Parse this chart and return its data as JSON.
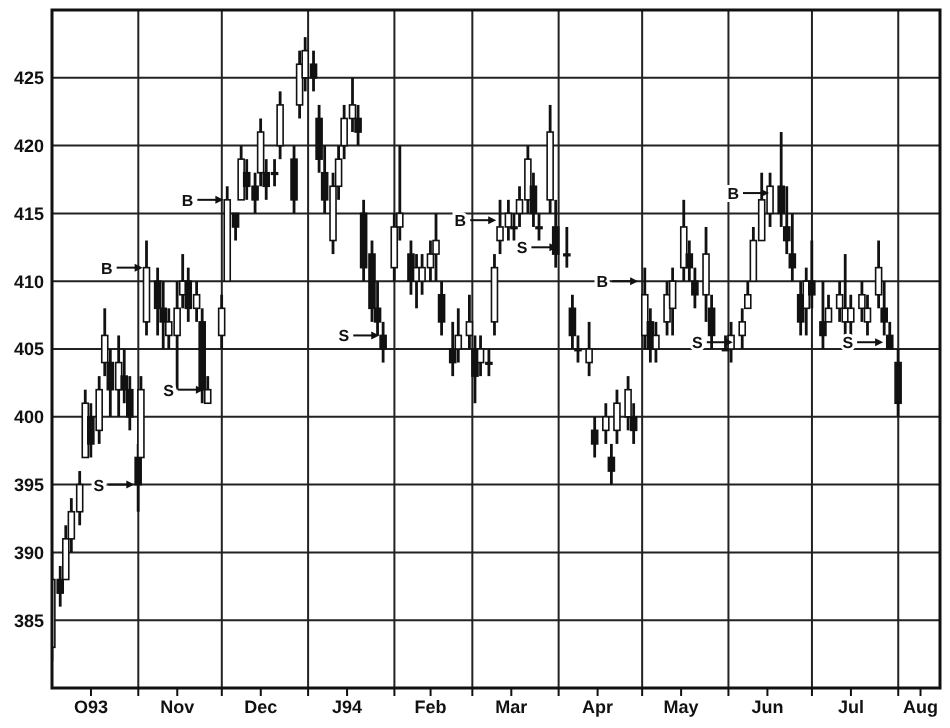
{
  "chart_data": {
    "type": "candlestick",
    "color": "#111111",
    "x": [
      "1993-10-01",
      "1993-10-04",
      "1993-10-06",
      "1993-10-08",
      "1993-10-11",
      "1993-10-13",
      "1993-10-15",
      "1993-10-18",
      "1993-10-20",
      "1993-10-22",
      "1993-10-25",
      "1993-10-27",
      "1993-10-29",
      "1993-11-01",
      "1993-11-02",
      "1993-11-04",
      "1993-11-08",
      "1993-11-10",
      "1993-11-12",
      "1993-11-15",
      "1993-11-17",
      "1993-11-19",
      "1993-11-22",
      "1993-11-24",
      "1993-11-26",
      "1993-12-01",
      "1993-12-03",
      "1993-12-06",
      "1993-12-08",
      "1993-12-10",
      "1993-12-13",
      "1993-12-15",
      "1993-12-17",
      "1993-12-20",
      "1993-12-22",
      "1993-12-27",
      "1993-12-29",
      "1993-12-31",
      "1994-01-03",
      "1994-01-05",
      "1994-01-07",
      "1994-01-10",
      "1994-01-12",
      "1994-01-14",
      "1994-01-17",
      "1994-01-19",
      "1994-01-21",
      "1994-01-24",
      "1994-01-26",
      "1994-01-28",
      "1994-02-01",
      "1994-02-03",
      "1994-02-07",
      "1994-02-09",
      "1994-02-11",
      "1994-02-14",
      "1994-02-16",
      "1994-02-18",
      "1994-02-22",
      "1994-02-24",
      "1994-02-28",
      "1994-03-02",
      "1994-03-04",
      "1994-03-07",
      "1994-03-09",
      "1994-03-11",
      "1994-03-14",
      "1994-03-16",
      "1994-03-18",
      "1994-03-21",
      "1994-03-23",
      "1994-03-25",
      "1994-03-29",
      "1994-03-31",
      "1994-04-04",
      "1994-04-06",
      "1994-04-08",
      "1994-04-12",
      "1994-04-14",
      "1994-04-18",
      "1994-04-20",
      "1994-04-22",
      "1994-04-26",
      "1994-04-28",
      "1994-05-02",
      "1994-05-04",
      "1994-05-06",
      "1994-05-10",
      "1994-05-12",
      "1994-05-16",
      "1994-05-18",
      "1994-05-20",
      "1994-05-24",
      "1994-05-26",
      "1994-05-31",
      "1994-06-02",
      "1994-06-06",
      "1994-06-08",
      "1994-06-10",
      "1994-06-13",
      "1994-06-16",
      "1994-06-20",
      "1994-06-22",
      "1994-06-24",
      "1994-06-27",
      "1994-06-29",
      "1994-07-01",
      "1994-07-05",
      "1994-07-07",
      "1994-07-11",
      "1994-07-13",
      "1994-07-15",
      "1994-07-19",
      "1994-07-21",
      "1994-07-25",
      "1994-07-27",
      "1994-07-29",
      "1994-08-01"
    ],
    "ohlc": [
      [
        383,
        390,
        382,
        388
      ],
      [
        388,
        389,
        386,
        387
      ],
      [
        388,
        392,
        388,
        391
      ],
      [
        391,
        394,
        390,
        393
      ],
      [
        393,
        396,
        392,
        395
      ],
      [
        397,
        402,
        397,
        401
      ],
      [
        400,
        401,
        397,
        398
      ],
      [
        399,
        403,
        398,
        402
      ],
      [
        404,
        408,
        403,
        406
      ],
      [
        404,
        405,
        400,
        402
      ],
      [
        402,
        406,
        400,
        404
      ],
      [
        403,
        405,
        401,
        402
      ],
      [
        402,
        403,
        399,
        400
      ],
      [
        397,
        398,
        393,
        395
      ],
      [
        397,
        403,
        397,
        402
      ],
      [
        407,
        413,
        406,
        411
      ],
      [
        410,
        411,
        406,
        408
      ],
      [
        408,
        410,
        405,
        407
      ],
      [
        406,
        408,
        405,
        407
      ],
      [
        406,
        410,
        402,
        408
      ],
      [
        409,
        412,
        408,
        410
      ],
      [
        410,
        411,
        407,
        408
      ],
      [
        408,
        410,
        407,
        409
      ],
      [
        407,
        408,
        401,
        402
      ],
      [
        401,
        403,
        401,
        402
      ],
      [
        406,
        409,
        405,
        408
      ],
      [
        410,
        417,
        410,
        416
      ],
      [
        415,
        415,
        413,
        414
      ],
      [
        416,
        420,
        416,
        419
      ],
      [
        418,
        419,
        416,
        417
      ],
      [
        417,
        418,
        415,
        416
      ],
      [
        418,
        422,
        417,
        421
      ],
      [
        418,
        419,
        416,
        417
      ],
      [
        418,
        419,
        417,
        418
      ],
      [
        420,
        424,
        419,
        423
      ],
      [
        419,
        420,
        415,
        416
      ],
      [
        423,
        427,
        422,
        426
      ],
      [
        425,
        428,
        424,
        427
      ],
      [
        426,
        427,
        424,
        425
      ],
      [
        422,
        423,
        418,
        419
      ],
      [
        418,
        420,
        415,
        416
      ],
      [
        413,
        418,
        412,
        417
      ],
      [
        417,
        420,
        416,
        419
      ],
      [
        420,
        423,
        419,
        422
      ],
      [
        422,
        425,
        421,
        423
      ],
      [
        422,
        423,
        420,
        421
      ],
      [
        415,
        416,
        410,
        411
      ],
      [
        412,
        413,
        407,
        408
      ],
      [
        408,
        410,
        406,
        407
      ],
      [
        406,
        407,
        404,
        405
      ],
      [
        411,
        415,
        410,
        414
      ],
      [
        414,
        420,
        413,
        415
      ],
      [
        412,
        413,
        409,
        410
      ],
      [
        410,
        412,
        408,
        411
      ],
      [
        410,
        412,
        409,
        411
      ],
      [
        411,
        413,
        410,
        412
      ],
      [
        412,
        415,
        410,
        413
      ],
      [
        409,
        410,
        406,
        407
      ],
      [
        405,
        407,
        403,
        404
      ],
      [
        405,
        408,
        404,
        406
      ],
      [
        406,
        409,
        405,
        407
      ],
      [
        405,
        406,
        401,
        403
      ],
      [
        404,
        406,
        403,
        405
      ],
      [
        404,
        405,
        403,
        404
      ],
      [
        407,
        412,
        406,
        411
      ],
      [
        413,
        416,
        412,
        414
      ],
      [
        414,
        416,
        413,
        415
      ],
      [
        414,
        415,
        413,
        414
      ],
      [
        415,
        417,
        414,
        416
      ],
      [
        416,
        420,
        415,
        419
      ],
      [
        417,
        418,
        414,
        415
      ],
      [
        414,
        415,
        413,
        414
      ],
      [
        416,
        423,
        415,
        421
      ],
      [
        414,
        416,
        411,
        412
      ],
      [
        412,
        414,
        411,
        412
      ],
      [
        408,
        409,
        405,
        406
      ],
      [
        405,
        406,
        404,
        405
      ],
      [
        404,
        407,
        403,
        405
      ],
      [
        399,
        400,
        397,
        398
      ],
      [
        399,
        401,
        398,
        400
      ],
      [
        397,
        398,
        395,
        396
      ],
      [
        399,
        402,
        398,
        401
      ],
      [
        400,
        403,
        399,
        402
      ],
      [
        400,
        401,
        398,
        399
      ],
      [
        406,
        411,
        405,
        409
      ],
      [
        407,
        408,
        404,
        405
      ],
      [
        405,
        407,
        404,
        406
      ],
      [
        407,
        410,
        406,
        409
      ],
      [
        408,
        411,
        406,
        410
      ],
      [
        411,
        416,
        410,
        414
      ],
      [
        412,
        413,
        410,
        411
      ],
      [
        410,
        411,
        408,
        409
      ],
      [
        409,
        414,
        407,
        412
      ],
      [
        408,
        409,
        405,
        406
      ],
      [
        405,
        406,
        405,
        405
      ],
      [
        405,
        407,
        404,
        406
      ],
      [
        406,
        408,
        405,
        407
      ],
      [
        408,
        410,
        408,
        409
      ],
      [
        410,
        414,
        410,
        413
      ],
      [
        413,
        418,
        413,
        416
      ],
      [
        415,
        418,
        414,
        417
      ],
      [
        417,
        421,
        414,
        415
      ],
      [
        414,
        417,
        412,
        413
      ],
      [
        412,
        415,
        410,
        411
      ],
      [
        409,
        410,
        406,
        407
      ],
      [
        408,
        411,
        406,
        410
      ],
      [
        410,
        413,
        408,
        409
      ],
      [
        407,
        410,
        405,
        406
      ],
      [
        407,
        409,
        407,
        408
      ],
      [
        408,
        410,
        407,
        409
      ],
      [
        407,
        412,
        405,
        408
      ],
      [
        407,
        409,
        406,
        408
      ],
      [
        408,
        410,
        407,
        409
      ],
      [
        407,
        409,
        406,
        408
      ],
      [
        409,
        413,
        408,
        411
      ],
      [
        408,
        410,
        406,
        407
      ],
      [
        406,
        407,
        405,
        405
      ],
      [
        404,
        405,
        400,
        401
      ]
    ],
    "xlim": [
      "1993-10-01",
      "1994-08-16"
    ],
    "xticks": [
      {
        "value": "1993-10-15",
        "label": "O93"
      },
      {
        "value": "1993-11-01",
        "label": null
      },
      {
        "value": "1993-11-15",
        "label": "Nov"
      },
      {
        "value": "1993-12-01",
        "label": null
      },
      {
        "value": "1993-12-15",
        "label": "Dec"
      },
      {
        "value": "1994-01-01",
        "label": null
      },
      {
        "value": "1994-01-15",
        "label": "J94"
      },
      {
        "value": "1994-02-01",
        "label": null
      },
      {
        "value": "1994-02-14",
        "label": "Feb"
      },
      {
        "value": "1994-03-01",
        "label": null
      },
      {
        "value": "1994-03-15",
        "label": "Mar"
      },
      {
        "value": "1994-04-01",
        "label": null
      },
      {
        "value": "1994-04-15",
        "label": "Apr"
      },
      {
        "value": "1994-05-01",
        "label": null
      },
      {
        "value": "1994-05-15",
        "label": "May"
      },
      {
        "value": "1994-06-01",
        "label": null
      },
      {
        "value": "1994-06-15",
        "label": "Jun"
      },
      {
        "value": "1994-07-01",
        "label": null
      },
      {
        "value": "1994-07-15",
        "label": "Jul"
      },
      {
        "value": "1994-08-01",
        "label": null
      },
      {
        "value": "1994-08-09",
        "label": "Aug"
      }
    ],
    "ylim": [
      380,
      430
    ],
    "yticks": [
      385,
      390,
      395,
      400,
      405,
      410,
      415,
      420,
      425
    ],
    "grid": true,
    "annotations": [
      {
        "text": "S",
        "x": "1993-11-01",
        "y": 395
      },
      {
        "text": "B",
        "x": "1993-11-04",
        "y": 411
      },
      {
        "text": "S",
        "x": "1993-11-26",
        "y": 402
      },
      {
        "text": "B",
        "x": "1993-12-03",
        "y": 416
      },
      {
        "text": "S",
        "x": "1994-01-28",
        "y": 406
      },
      {
        "text": "B",
        "x": "1994-03-11",
        "y": 414.5
      },
      {
        "text": "S",
        "x": "1994-04-02",
        "y": 412.5
      },
      {
        "text": "B",
        "x": "1994-05-01",
        "y": 410
      },
      {
        "text": "S",
        "x": "1994-06-04",
        "y": 405.5
      },
      {
        "text": "B",
        "x": "1994-06-17",
        "y": 416.5
      },
      {
        "text": "S",
        "x": "1994-07-28",
        "y": 405.5
      }
    ]
  }
}
